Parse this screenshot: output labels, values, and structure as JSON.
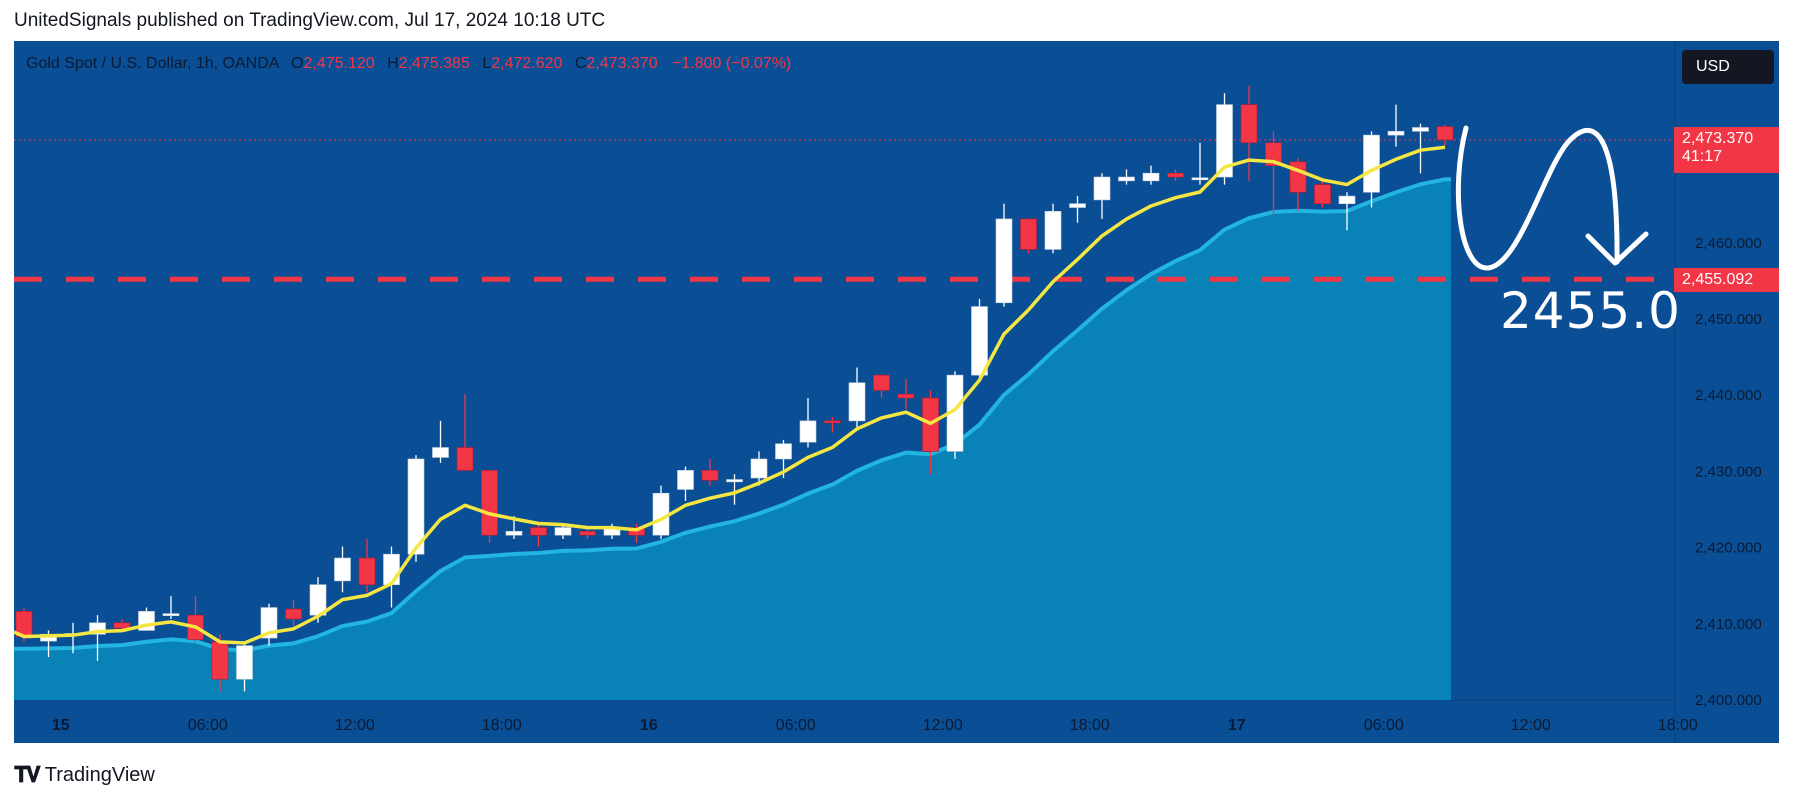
{
  "header": {
    "published_line": "UnitedSignals published on TradingView.com, Jul 17, 2024 10:18 UTC"
  },
  "legend": {
    "symbol": "Gold Spot / U.S. Dollar, 1h, OANDA",
    "o_label": "O",
    "o_value": "2,475.120",
    "h_label": "H",
    "h_value": "2,475.385",
    "l_label": "L",
    "l_value": "2,472.620",
    "c_label": "C",
    "c_value": "2,473.370",
    "change": "−1.800 (−0.07%)"
  },
  "currency_button": "USD",
  "price_tag": {
    "price": "2,473.370",
    "countdown": "41:17"
  },
  "level_tag": "2,455.092",
  "annotation_text": "2455.0",
  "footer": {
    "brand": "TradingView"
  },
  "colors": {
    "background": "#0a4f96",
    "up": "#ffffff",
    "down": "#f23645",
    "ema": "#f5e642",
    "area": "#1fa9d1",
    "level": "#f23645"
  },
  "icons": {
    "logo": "tradingview-logo-icon",
    "arrow": "curved-down-arrow-icon"
  },
  "chart_data": {
    "type": "candlestick",
    "ylim": [
      2400,
      2480
    ],
    "y_ticks": [
      "2,400.000",
      "2,410.000",
      "2,420.000",
      "2,430.000",
      "2,440.000",
      "2,450.000",
      "2,460.000"
    ],
    "y_tick_values": [
      2400,
      2410,
      2420,
      2430,
      2440,
      2450,
      2460
    ],
    "x_ticks": [
      {
        "label": "15",
        "bar": 1.5,
        "bold": true
      },
      {
        "label": "06:00",
        "bar": 7.5
      },
      {
        "label": "12:00",
        "bar": 13.5
      },
      {
        "label": "18:00",
        "bar": 19.5
      },
      {
        "label": "16",
        "bar": 25.5,
        "bold": true
      },
      {
        "label": "06:00",
        "bar": 31.5
      },
      {
        "label": "12:00",
        "bar": 37.5
      },
      {
        "label": "18:00",
        "bar": 43.5
      },
      {
        "label": "17",
        "bar": 49.5,
        "bold": true
      },
      {
        "label": "06:00",
        "bar": 55.5
      },
      {
        "label": "12:00",
        "bar": 61.5
      },
      {
        "label": "18:00",
        "bar": 67.5
      }
    ],
    "level": 2455.092,
    "last_price": 2473.37,
    "candles": [
      [
        2411.5,
        2408.2,
        2412.0,
        2407.5
      ],
      [
        2407.6,
        2408.5,
        2409.0,
        2405.5
      ],
      [
        2408.5,
        2408.6,
        2410.0,
        2406.0
      ],
      [
        2408.5,
        2410.0,
        2411.0,
        2405.0
      ],
      [
        2410.0,
        2409.3,
        2410.5,
        2409.0
      ],
      [
        2409.0,
        2411.5,
        2412.0,
        2409.0
      ],
      [
        2411.0,
        2411.2,
        2413.5,
        2410.5
      ],
      [
        2411.0,
        2407.8,
        2413.5,
        2407.5
      ],
      [
        2407.5,
        2402.6,
        2408.5,
        2401.0
      ],
      [
        2402.6,
        2407.0,
        2407.5,
        2401.0
      ],
      [
        2408.0,
        2412.0,
        2412.5,
        2407.0
      ],
      [
        2411.8,
        2410.5,
        2413.0,
        2409.5
      ],
      [
        2411.0,
        2415.0,
        2416.0,
        2410.0
      ],
      [
        2415.5,
        2418.5,
        2420.0,
        2414.0
      ],
      [
        2418.5,
        2415.0,
        2421.0,
        2414.0
      ],
      [
        2415.0,
        2419.0,
        2420.0,
        2412.0
      ],
      [
        2419.0,
        2431.5,
        2432.0,
        2418.0
      ],
      [
        2431.7,
        2433.0,
        2436.5,
        2431.0
      ],
      [
        2433.0,
        2430.0,
        2440.0,
        2430.0
      ],
      [
        2430.0,
        2421.5,
        2430.0,
        2420.5
      ],
      [
        2421.5,
        2422.0,
        2424.0,
        2421.0
      ],
      [
        2422.5,
        2421.5,
        2423.0,
        2420.0
      ],
      [
        2421.5,
        2422.5,
        2423.0,
        2421.0
      ],
      [
        2422.0,
        2421.5,
        2422.5,
        2421.0
      ],
      [
        2421.5,
        2422.5,
        2423.0,
        2421.0
      ],
      [
        2422.5,
        2421.5,
        2423.0,
        2420.5
      ],
      [
        2421.5,
        2427.0,
        2428.0,
        2421.0
      ],
      [
        2427.5,
        2430.0,
        2430.5,
        2426.0
      ],
      [
        2430.0,
        2428.7,
        2431.5,
        2428.0
      ],
      [
        2428.5,
        2428.8,
        2429.5,
        2425.5
      ],
      [
        2429.0,
        2431.5,
        2432.5,
        2428.0
      ],
      [
        2431.5,
        2433.5,
        2434.0,
        2429.0
      ],
      [
        2433.7,
        2436.5,
        2439.5,
        2433.0
      ],
      [
        2436.5,
        2436.3,
        2437.0,
        2435.0
      ],
      [
        2436.5,
        2441.5,
        2443.5,
        2435.5
      ],
      [
        2442.5,
        2440.5,
        2442.5,
        2439.5
      ],
      [
        2440.0,
        2439.5,
        2442.0,
        2438.0
      ],
      [
        2439.5,
        2432.5,
        2440.5,
        2429.5
      ],
      [
        2432.5,
        2442.5,
        2443.0,
        2431.5
      ],
      [
        2442.5,
        2451.5,
        2452.5,
        2442.0
      ],
      [
        2452.0,
        2463.0,
        2465.0,
        2451.5
      ],
      [
        2463.0,
        2459.0,
        2463.0,
        2458.5
      ],
      [
        2459.0,
        2464.0,
        2465.0,
        2458.5
      ],
      [
        2464.5,
        2465.0,
        2466.0,
        2462.5
      ],
      [
        2465.5,
        2468.5,
        2469.0,
        2463.0
      ],
      [
        2468.0,
        2468.5,
        2469.5,
        2467.5
      ],
      [
        2468.0,
        2469.0,
        2470.0,
        2467.5
      ],
      [
        2469.0,
        2468.5,
        2469.5,
        2468.0
      ],
      [
        2468.3,
        2468.4,
        2473.0,
        2467.5
      ],
      [
        2468.5,
        2478.0,
        2479.5,
        2467.5
      ],
      [
        2478.0,
        2473.0,
        2480.5,
        2468.0
      ],
      [
        2473.0,
        2470.0,
        2474.5,
        2463.5
      ],
      [
        2470.5,
        2466.5,
        2471.0,
        2464.0
      ],
      [
        2467.5,
        2465.0,
        2468.0,
        2464.5
      ],
      [
        2465.0,
        2466.0,
        2466.5,
        2461.5
      ],
      [
        2466.5,
        2474.0,
        2474.5,
        2464.5
      ],
      [
        2474.0,
        2474.5,
        2478.0,
        2472.5
      ],
      [
        2474.5,
        2475.0,
        2475.5,
        2469.0
      ],
      [
        2475.12,
        2473.37,
        2475.385,
        2472.62
      ]
    ]
  }
}
